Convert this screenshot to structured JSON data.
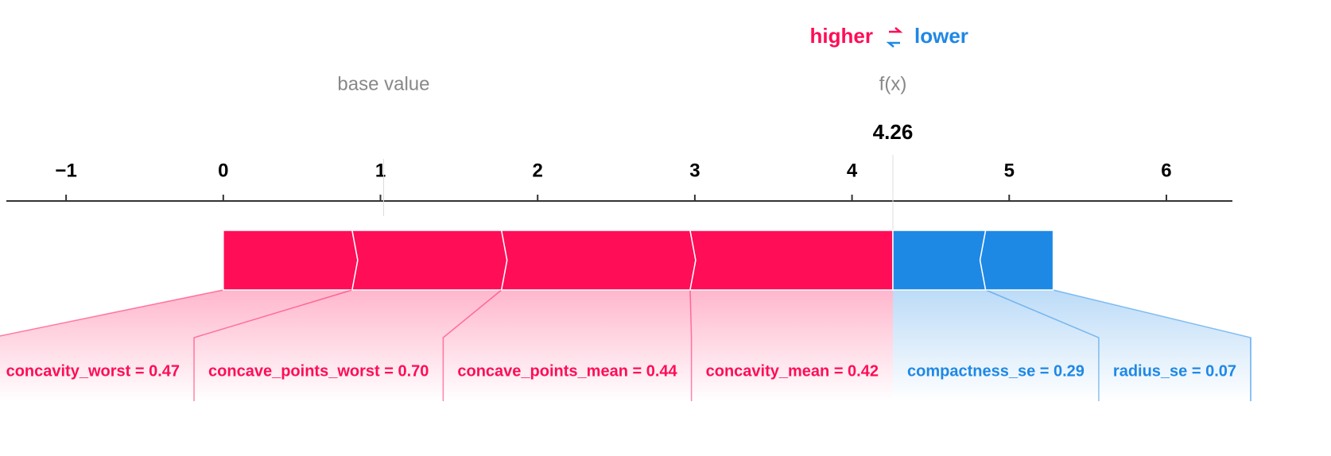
{
  "chart_data": {
    "type": "force",
    "higher_label": "higher",
    "lower_label": "lower",
    "base_value_label": "base value",
    "base_value": 1.02,
    "fx_label": "f(x)",
    "fx": 4.26,
    "xlim": [
      -1.38,
      6.42
    ],
    "xticks": [
      {
        "value": -1,
        "label": "−1"
      },
      0,
      1,
      2,
      3,
      4,
      5,
      6
    ],
    "positive_color": "#ff0d57",
    "negative_color": "#1e88e5",
    "features": [
      {
        "label": "concavity_worst = 0.47",
        "effect": 0.82
      },
      {
        "label": "concave_points_worst = 0.70",
        "effect": 0.95
      },
      {
        "label": "concave_points_mean = 0.44",
        "effect": 1.2
      },
      {
        "label": "concavity_mean = 0.42",
        "effect": 1.29
      },
      {
        "label": "compactness_se = 0.29",
        "effect": -0.59
      },
      {
        "label": "radius_se = 0.07",
        "effect": -0.43
      }
    ]
  }
}
